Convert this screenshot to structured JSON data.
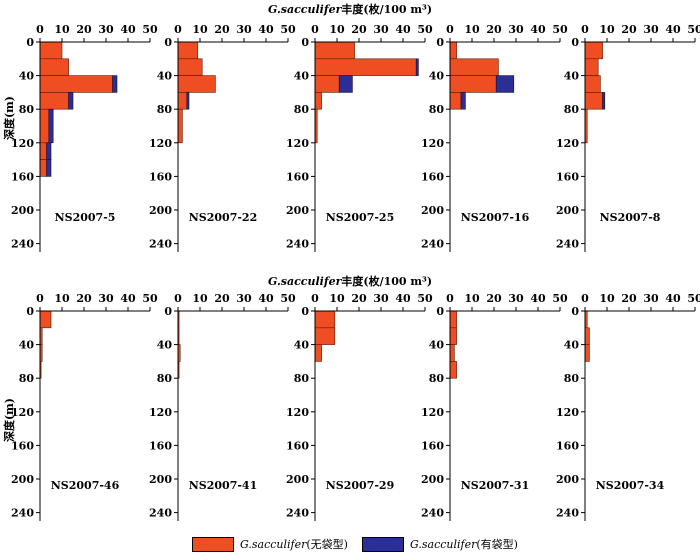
{
  "chart_data": {
    "type": "bar",
    "orientation": "horizontal-stacked",
    "title": "G.sacculifer丰度(枚/100 m³)",
    "title_prefix": "G.sacculifer",
    "title_suffix": "丰度(枚/100 m³)",
    "ylabel": "深度(m)",
    "xlim": [
      0,
      50
    ],
    "ylim": [
      0,
      250
    ],
    "x_ticks": [
      0,
      10,
      20,
      30,
      40,
      50
    ],
    "y_ticks": [
      0,
      40,
      80,
      120,
      160,
      200,
      240
    ],
    "legend": {
      "position": "bottom-center",
      "items": [
        {
          "name": "G.sacculifer(无袋型)",
          "prefix": "G.sacculifer",
          "suffix": "(无袋型)",
          "color": "#ee4e22"
        },
        {
          "name": "G.sacculifer(有袋型)",
          "prefix": "G.sacculifer",
          "suffix": "(有袋型)",
          "color": "#2b2e96"
        }
      ]
    },
    "rows": [
      {
        "title_prefix": "G.sacculifer",
        "title_suffix": "丰度(枚/100 m³)",
        "panels": [
          {
            "station": "NS2007-5",
            "bars": [
              {
                "depth_top": 0,
                "depth_bottom": 20,
                "no_sac": 10,
                "sac": 0
              },
              {
                "depth_top": 20,
                "depth_bottom": 40,
                "no_sac": 13,
                "sac": 0
              },
              {
                "depth_top": 40,
                "depth_bottom": 60,
                "no_sac": 33,
                "sac": 2
              },
              {
                "depth_top": 60,
                "depth_bottom": 80,
                "no_sac": 13,
                "sac": 2
              },
              {
                "depth_top": 80,
                "depth_bottom": 120,
                "no_sac": 4,
                "sac": 2
              },
              {
                "depth_top": 120,
                "depth_bottom": 140,
                "no_sac": 3,
                "sac": 2
              },
              {
                "depth_top": 140,
                "depth_bottom": 160,
                "no_sac": 3,
                "sac": 2
              }
            ]
          },
          {
            "station": "NS2007-22",
            "bars": [
              {
                "depth_top": 0,
                "depth_bottom": 20,
                "no_sac": 9,
                "sac": 0
              },
              {
                "depth_top": 20,
                "depth_bottom": 40,
                "no_sac": 11,
                "sac": 0
              },
              {
                "depth_top": 40,
                "depth_bottom": 60,
                "no_sac": 17,
                "sac": 0
              },
              {
                "depth_top": 60,
                "depth_bottom": 80,
                "no_sac": 4,
                "sac": 1
              },
              {
                "depth_top": 80,
                "depth_bottom": 120,
                "no_sac": 2,
                "sac": 0
              }
            ]
          },
          {
            "station": "NS2007-25",
            "bars": [
              {
                "depth_top": 0,
                "depth_bottom": 20,
                "no_sac": 18,
                "sac": 0
              },
              {
                "depth_top": 20,
                "depth_bottom": 40,
                "no_sac": 46,
                "sac": 1
              },
              {
                "depth_top": 40,
                "depth_bottom": 60,
                "no_sac": 11,
                "sac": 6
              },
              {
                "depth_top": 60,
                "depth_bottom": 80,
                "no_sac": 3,
                "sac": 0
              },
              {
                "depth_top": 80,
                "depth_bottom": 120,
                "no_sac": 1,
                "sac": 0
              }
            ]
          },
          {
            "station": "NS2007-16",
            "bars": [
              {
                "depth_top": 0,
                "depth_bottom": 20,
                "no_sac": 3,
                "sac": 0
              },
              {
                "depth_top": 20,
                "depth_bottom": 40,
                "no_sac": 22,
                "sac": 0
              },
              {
                "depth_top": 40,
                "depth_bottom": 60,
                "no_sac": 21,
                "sac": 8
              },
              {
                "depth_top": 60,
                "depth_bottom": 80,
                "no_sac": 5,
                "sac": 2
              }
            ]
          },
          {
            "station": "NS2007-8",
            "bars": [
              {
                "depth_top": 0,
                "depth_bottom": 20,
                "no_sac": 8,
                "sac": 0
              },
              {
                "depth_top": 20,
                "depth_bottom": 40,
                "no_sac": 6,
                "sac": 0
              },
              {
                "depth_top": 40,
                "depth_bottom": 60,
                "no_sac": 7,
                "sac": 0
              },
              {
                "depth_top": 60,
                "depth_bottom": 80,
                "no_sac": 8,
                "sac": 1
              },
              {
                "depth_top": 80,
                "depth_bottom": 120,
                "no_sac": 1,
                "sac": 0
              }
            ]
          }
        ]
      },
      {
        "title_prefix": "G.sacculifer",
        "title_suffix": "丰度(枚/100 m³)",
        "panels": [
          {
            "station": "NS2007-46",
            "bars": [
              {
                "depth_top": 0,
                "depth_bottom": 20,
                "no_sac": 5,
                "sac": 0
              },
              {
                "depth_top": 20,
                "depth_bottom": 40,
                "no_sac": 1,
                "sac": 0
              },
              {
                "depth_top": 40,
                "depth_bottom": 60,
                "no_sac": 1,
                "sac": 0
              },
              {
                "depth_top": 60,
                "depth_bottom": 80,
                "no_sac": 0.5,
                "sac": 0
              }
            ]
          },
          {
            "station": "NS2007-41",
            "bars": [
              {
                "depth_top": 0,
                "depth_bottom": 20,
                "no_sac": 0.5,
                "sac": 0
              },
              {
                "depth_top": 20,
                "depth_bottom": 40,
                "no_sac": 0.5,
                "sac": 0
              },
              {
                "depth_top": 40,
                "depth_bottom": 60,
                "no_sac": 1,
                "sac": 0
              },
              {
                "depth_top": 60,
                "depth_bottom": 80,
                "no_sac": 0.5,
                "sac": 0
              }
            ]
          },
          {
            "station": "NS2007-29",
            "bars": [
              {
                "depth_top": 0,
                "depth_bottom": 20,
                "no_sac": 9,
                "sac": 0
              },
              {
                "depth_top": 20,
                "depth_bottom": 40,
                "no_sac": 9,
                "sac": 0
              },
              {
                "depth_top": 40,
                "depth_bottom": 60,
                "no_sac": 3,
                "sac": 0
              }
            ]
          },
          {
            "station": "NS2007-31",
            "bars": [
              {
                "depth_top": 0,
                "depth_bottom": 20,
                "no_sac": 3,
                "sac": 0
              },
              {
                "depth_top": 20,
                "depth_bottom": 40,
                "no_sac": 3,
                "sac": 0
              },
              {
                "depth_top": 40,
                "depth_bottom": 60,
                "no_sac": 2,
                "sac": 0
              },
              {
                "depth_top": 60,
                "depth_bottom": 80,
                "no_sac": 3,
                "sac": 0
              }
            ]
          },
          {
            "station": "NS2007-34",
            "bars": [
              {
                "depth_top": 0,
                "depth_bottom": 20,
                "no_sac": 1,
                "sac": 0
              },
              {
                "depth_top": 20,
                "depth_bottom": 40,
                "no_sac": 2,
                "sac": 0
              },
              {
                "depth_top": 40,
                "depth_bottom": 60,
                "no_sac": 2,
                "sac": 0
              }
            ]
          }
        ]
      }
    ]
  }
}
